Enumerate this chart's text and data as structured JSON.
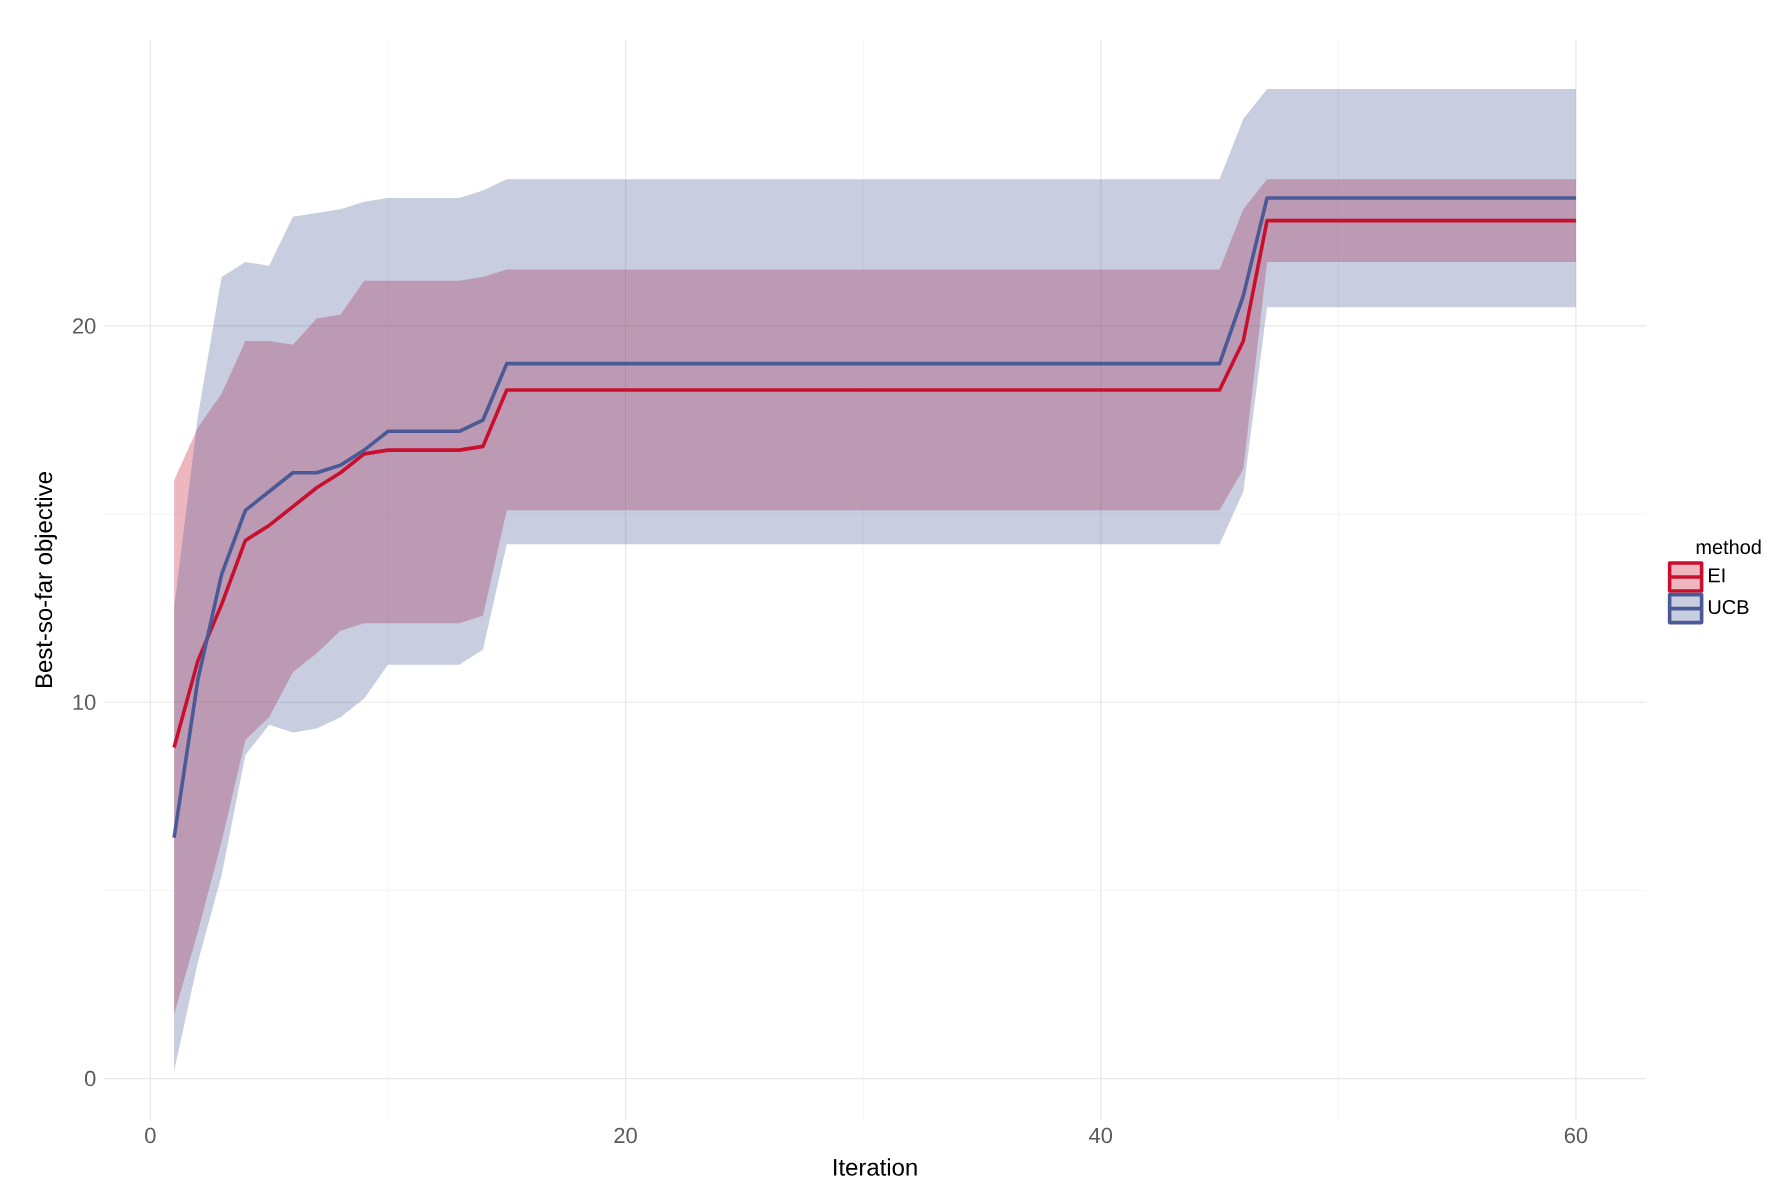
{
  "chart_data": {
    "type": "line",
    "xlabel": "Iteration",
    "ylabel": "Best-so-far objective",
    "legend_title": "method",
    "x": [
      1,
      2,
      3,
      4,
      5,
      6,
      7,
      8,
      9,
      10,
      13,
      14,
      15,
      45,
      46,
      47,
      60
    ],
    "series": [
      {
        "name": "EI",
        "color": "#c8102e",
        "values": [
          8.8,
          11.1,
          12.6,
          14.3,
          14.7,
          15.2,
          15.7,
          16.1,
          16.6,
          16.7,
          16.7,
          16.8,
          18.3,
          18.3,
          19.6,
          22.8,
          22.8
        ],
        "upper": [
          15.9,
          17.3,
          18.2,
          19.6,
          19.6,
          19.5,
          20.2,
          20.3,
          21.2,
          21.2,
          21.2,
          21.3,
          21.5,
          21.5,
          23.1,
          23.9,
          23.9
        ],
        "lower": [
          1.7,
          3.9,
          6.3,
          9.0,
          9.6,
          10.8,
          11.3,
          11.9,
          12.1,
          12.1,
          12.1,
          12.3,
          15.1,
          15.1,
          16.2,
          21.7,
          21.7
        ]
      },
      {
        "name": "UCB",
        "color": "#4a5a96",
        "values": [
          6.4,
          10.6,
          13.4,
          15.1,
          15.6,
          16.1,
          16.1,
          16.3,
          16.7,
          17.2,
          17.2,
          17.5,
          19.0,
          19.0,
          20.8,
          23.4,
          23.4
        ],
        "upper": [
          12.5,
          17.6,
          21.3,
          21.7,
          21.6,
          22.9,
          23.0,
          23.1,
          23.3,
          23.4,
          23.4,
          23.6,
          23.9,
          23.9,
          25.5,
          26.3,
          26.3
        ],
        "lower": [
          0.2,
          3.1,
          5.4,
          8.6,
          9.4,
          9.2,
          9.3,
          9.6,
          10.1,
          11.0,
          11.0,
          11.4,
          14.2,
          14.2,
          15.6,
          20.5,
          20.5
        ]
      }
    ],
    "xlim": [
      -1.95,
      62.95
    ],
    "ylim": [
      -1.1,
      27.6
    ],
    "xticks": [
      0,
      20,
      40,
      60
    ],
    "yticks": [
      0,
      10,
      20
    ],
    "grid": true,
    "legend": "right",
    "line_style": "solid",
    "marker": "none"
  }
}
